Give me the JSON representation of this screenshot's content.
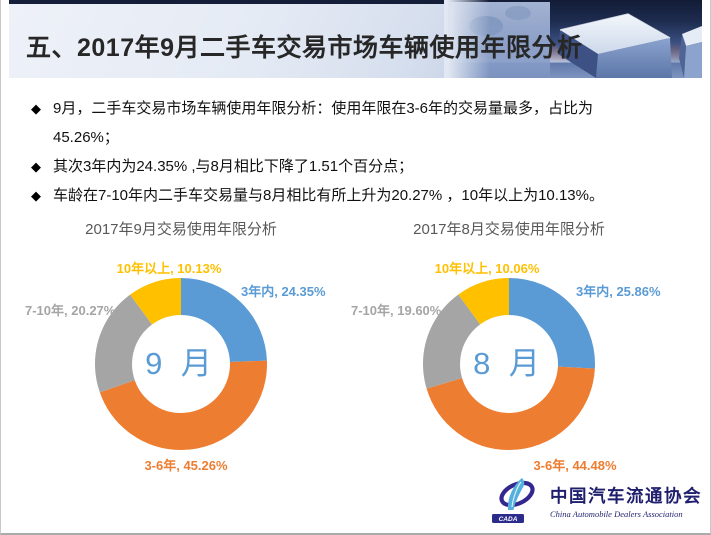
{
  "header": {
    "title": "五、2017年9月二手车交易市场车辆使用年限分析"
  },
  "bullets": [
    {
      "marker": "◆",
      "lines": [
        "9月，二手车交易市场车辆使用年限分析：使用年限在3-6年的交易量最多，占比为",
        "45.26%；"
      ]
    },
    {
      "marker": "◆",
      "lines": [
        "其次3年内为24.35% ,与8月相比下降了1.51个百分点；"
      ]
    },
    {
      "marker": "◆",
      "lines": [
        "车龄在7-10年内二手车交易量与8月相比有所上升为20.27% ，10年以上为10.13%。"
      ]
    }
  ],
  "chart_data": [
    {
      "type": "pie",
      "subtype": "donut",
      "title": "2017年9月交易使用年限分析",
      "center_label": "9 月",
      "center_label_color": "#5B9BD5",
      "start_angle_deg": 0,
      "direction": "clockwise",
      "hole_ratio": 0.57,
      "slices": [
        {
          "label": "3年内",
          "value": 24.35,
          "display": "3年内, 24.35%",
          "color": "#5B9BD5"
        },
        {
          "label": "3-6年",
          "value": 45.26,
          "display": "3-6年, 45.26%",
          "color": "#ED7D31"
        },
        {
          "label": "7-10年",
          "value": 20.27,
          "display": "7-10年, 20.27%",
          "color": "#A5A5A5"
        },
        {
          "label": "10年以上",
          "value": 10.13,
          "display": "10年以上, 10.13%",
          "color": "#FFC000"
        }
      ]
    },
    {
      "type": "pie",
      "subtype": "donut",
      "title": "2017年8月交易使用年限分析",
      "center_label": "8 月",
      "center_label_color": "#5B9BD5",
      "start_angle_deg": 0,
      "direction": "clockwise",
      "hole_ratio": 0.57,
      "slices": [
        {
          "label": "3年内",
          "value": 25.86,
          "display": "3年内, 25.86%",
          "color": "#5B9BD5"
        },
        {
          "label": "3-6年",
          "value": 44.48,
          "display": "3-6年, 44.48%",
          "color": "#ED7D31"
        },
        {
          "label": "7-10年",
          "value": 19.6,
          "display": "7-10年, 19.60%",
          "color": "#A5A5A5"
        },
        {
          "label": "10年以上",
          "value": 10.06,
          "display": "10年以上, 10.06%",
          "color": "#FFC000"
        }
      ]
    }
  ],
  "logo": {
    "cn": "中国汽车流通协会",
    "en": "China Automobile Dealers Association",
    "badge": "CADA"
  },
  "colors": {
    "accent_blue": "#5B9BD5",
    "accent_orange": "#ED7D31",
    "accent_gray": "#A5A5A5",
    "accent_gold": "#FFC000",
    "chart_title": "#595959",
    "header_navy": "#141e38"
  }
}
